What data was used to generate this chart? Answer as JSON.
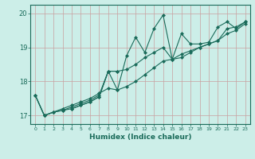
{
  "xlabel": "Humidex (Indice chaleur)",
  "ylabel": "",
  "bg_color": "#cceee8",
  "line_color": "#1a6b5a",
  "grid_color": "#c8a0a0",
  "xlim": [
    -0.5,
    23.5
  ],
  "ylim": [
    16.75,
    20.25
  ],
  "xticks": [
    0,
    1,
    2,
    3,
    4,
    5,
    6,
    7,
    8,
    9,
    10,
    11,
    12,
    13,
    14,
    15,
    16,
    17,
    18,
    19,
    20,
    21,
    22,
    23
  ],
  "yticks": [
    17,
    18,
    19,
    20
  ],
  "lines": [
    {
      "x": [
        0,
        1,
        2,
        3,
        4,
        5,
        6,
        7,
        8,
        9,
        10,
        11,
        12,
        13,
        14,
        15,
        16,
        17,
        18,
        19,
        20,
        21,
        22,
        23
      ],
      "y": [
        17.6,
        17.0,
        17.1,
        17.15,
        17.2,
        17.3,
        17.4,
        17.55,
        18.3,
        17.75,
        18.75,
        19.3,
        18.85,
        19.55,
        19.95,
        18.65,
        19.4,
        19.1,
        19.1,
        19.15,
        19.6,
        19.75,
        19.55,
        19.75
      ]
    },
    {
      "x": [
        0,
        1,
        2,
        3,
        4,
        5,
        6,
        7,
        8,
        9,
        10,
        11,
        12,
        13,
        14,
        15,
        16,
        17,
        18,
        19,
        20,
        21,
        22,
        23
      ],
      "y": [
        17.6,
        17.0,
        17.1,
        17.15,
        17.25,
        17.35,
        17.45,
        17.6,
        18.3,
        18.3,
        18.35,
        18.5,
        18.7,
        18.85,
        19.0,
        18.65,
        18.7,
        18.85,
        19.0,
        19.1,
        19.2,
        19.55,
        19.6,
        19.75
      ]
    },
    {
      "x": [
        0,
        1,
        2,
        3,
        4,
        5,
        6,
        7,
        8,
        9,
        10,
        11,
        12,
        13,
        14,
        15,
        16,
        17,
        18,
        19,
        20,
        21,
        22,
        23
      ],
      "y": [
        17.6,
        17.0,
        17.1,
        17.2,
        17.3,
        17.4,
        17.5,
        17.65,
        17.8,
        17.75,
        17.85,
        18.0,
        18.2,
        18.4,
        18.6,
        18.65,
        18.8,
        18.9,
        19.0,
        19.1,
        19.2,
        19.4,
        19.5,
        19.7
      ]
    },
    {
      "x": [
        4,
        5,
        6,
        7,
        8,
        9
      ],
      "y": [
        17.2,
        17.3,
        17.4,
        17.55,
        18.3,
        18.3
      ]
    }
  ]
}
